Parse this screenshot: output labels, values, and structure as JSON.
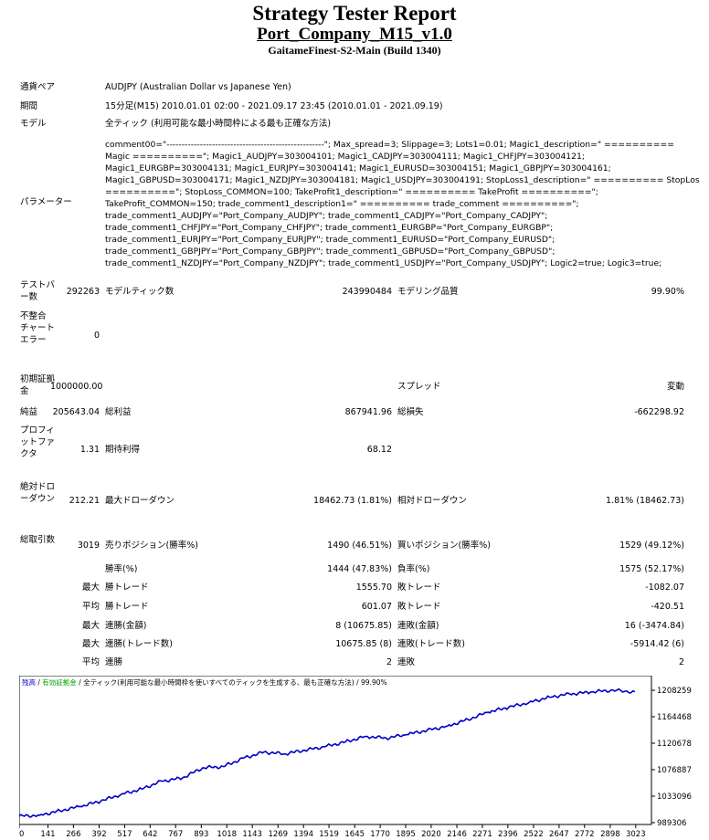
{
  "header": {
    "title": "Strategy Tester Report",
    "subtitle": "Port_Company_M15_v1.0",
    "build": "GaitameFinest-S2-Main (Build 1340)"
  },
  "info": {
    "symbol_label": "通貨ペア",
    "symbol_value": "AUDJPY (Australian Dollar vs Japanese Yen)",
    "period_label": "期間",
    "period_value": "15分足(M15) 2010.01.01 02:00 - 2021.09.17 23:45 (2010.01.01 - 2021.09.19)",
    "model_label": "モデル",
    "model_value": "全ティック (利用可能な最小時間枠による最も正確な方法)",
    "params_label": "パラメーター",
    "params_lines": [
      "comment00=\"----------------------------------------------------\"; Max_spread=3; Slippage=3; Lots1=0.01; Magic1_description=\" ==========",
      "Magic ==========\"; Magic1_AUDJPY=303004101; Magic1_CADJPY=303004111; Magic1_CHFJPY=303004121;",
      "Magic1_EURGBP=303004131; Magic1_EURJPY=303004141; Magic1_EURUSD=303004151; Magic1_GBPJPY=303004161;",
      "Magic1_GBPUSD=303004171; Magic1_NZDJPY=303004181; Magic1_USDJPY=303004191; StopLoss1_description=\" ========== StopLoss",
      "==========\"; StopLoss_COMMON=100; TakeProfit1_description=\" ========== TakeProfit ==========\";",
      "TakeProfit_COMMON=150; trade_comment1_description1=\" ========== trade_comment ==========\";",
      "trade_comment1_AUDJPY=\"Port_Company_AUDJPY\"; trade_comment1_CADJPY=\"Port_Company_CADJPY\";",
      "trade_comment1_CHFJPY=\"Port_Company_CHFJPY\"; trade_comment1_EURGBP=\"Port_Company_EURGBP\";",
      "trade_comment1_EURJPY=\"Port_Company_EURJPY\"; trade_comment1_EURUSD=\"Port_Company_EURUSD\";",
      "trade_comment1_GBPJPY=\"Port_Company_GBPJPY\"; trade_comment1_GBPUSD=\"Port_Company_GBPUSD\";",
      "trade_comment1_NZDJPY=\"Port_Company_NZDJPY\"; trade_comment1_USDJPY=\"Port_Company_USDJPY\"; Logic2=true; Logic3=true;"
    ]
  },
  "stats": {
    "bars_label": "テストバー数",
    "bars_value": "292263",
    "ticks_label": "モデルティック数",
    "ticks_value": "243990484",
    "quality_label": "モデリング品質",
    "quality_value": "99.90%",
    "mismatch_label": "不整合チャートエラー",
    "mismatch_value": "0",
    "deposit_label": "初期証拠金",
    "deposit_value": "1000000.00",
    "spread_label": "スプレッド",
    "spread_value": "変動",
    "netprofit_label": "純益",
    "netprofit_value": "205643.04",
    "grossprofit_label": "総利益",
    "grossprofit_value": "867941.96",
    "grossloss_label": "総損失",
    "grossloss_value": "-662298.92",
    "pf_label": "プロフィットファクタ",
    "pf_value": "1.31",
    "expected_label": "期待利得",
    "expected_value": "68.12",
    "absdd_label": "絶対ドローダウン",
    "absdd_value": "212.21",
    "maxdd_label": "最大ドローダウン",
    "maxdd_value": "18462.73 (1.81%)",
    "reldd_label": "相対ドローダウン",
    "reldd_value": "1.81% (18462.73)",
    "trades_label": "総取引数",
    "trades_value": "3019",
    "short_label": "売りポジション(勝率%)",
    "short_value": "1490 (46.51%)",
    "long_label": "買いポジション(勝率%)",
    "long_value": "1529 (49.12%)",
    "win_label": "勝率(%)",
    "win_value": "1444 (47.83%)",
    "loss_label": "負率(%)",
    "loss_value": "1575 (52.17%)",
    "max_pre": "最大",
    "avg_pre": "平均",
    "largest_win_label": "勝トレード",
    "largest_win_value": "1555.70",
    "largest_loss_label": "敗トレード",
    "largest_loss_value": "-1082.07",
    "avg_win_label": "勝トレード",
    "avg_win_value": "601.07",
    "avg_loss_label": "敗トレード",
    "avg_loss_value": "-420.51",
    "consec_win_money_label": "連勝(金額)",
    "consec_win_money_value": "8 (10675.85)",
    "consec_loss_money_label": "連敗(金額)",
    "consec_loss_money_value": "16 (-3474.84)",
    "consec_win_trades_label": "連勝(トレード数)",
    "consec_win_trades_value": "10675.85 (8)",
    "consec_loss_trades_label": "連敗(トレード数)",
    "consec_loss_trades_value": "-5914.42 (6)",
    "avg_consec_win_label": "連勝",
    "avg_consec_win_value": "2",
    "avg_consec_loss_label": "連敗",
    "avg_consec_loss_value": "2"
  },
  "chart_legend": {
    "balance": "残高",
    "sep1": " / ",
    "equity": "有効証拠金",
    "sep2": " / ",
    "model": "全ティック(利用可能な最小時間枠を使いすべてのティックを生成する、最も正確な方法)",
    "sep3": " / ",
    "quality": "99.90%",
    "colors": {
      "balance": "#0000c8",
      "equity": "#00a000",
      "text": "#000000"
    }
  },
  "chart_data": {
    "type": "line",
    "title": "",
    "xlabel": "",
    "ylabel": "",
    "x_ticks": [
      "0",
      "141",
      "266",
      "392",
      "517",
      "642",
      "767",
      "893",
      "1018",
      "1143",
      "1269",
      "1394",
      "1519",
      "1645",
      "1770",
      "1895",
      "2020",
      "2146",
      "2271",
      "2396",
      "2522",
      "2647",
      "2772",
      "2898",
      "3023"
    ],
    "y_ticks": [
      "1208259",
      "1164468",
      "1120678",
      "1076887",
      "1033096",
      "989306"
    ],
    "ylim": [
      989306,
      1208259
    ],
    "xlim": [
      0,
      3100
    ],
    "series": [
      {
        "color": "#0000c8",
        "x": [
          0,
          100,
          200,
          300,
          400,
          500,
          600,
          700,
          800,
          900,
          1000,
          1100,
          1200,
          1300,
          1400,
          1500,
          1600,
          1700,
          1800,
          1900,
          2000,
          2100,
          2200,
          2300,
          2400,
          2500,
          2600,
          2700,
          2800,
          2900,
          3019
        ],
        "y": [
          1000000,
          1001500,
          1009000,
          1016000,
          1025000,
          1036000,
          1045000,
          1058000,
          1063000,
          1080000,
          1082000,
          1096000,
          1106000,
          1103000,
          1109000,
          1115000,
          1123000,
          1132000,
          1129000,
          1135000,
          1142000,
          1149000,
          1160000,
          1172000,
          1180000,
          1188000,
          1197000,
          1202000,
          1205000,
          1208259,
          1205643
        ]
      }
    ]
  }
}
